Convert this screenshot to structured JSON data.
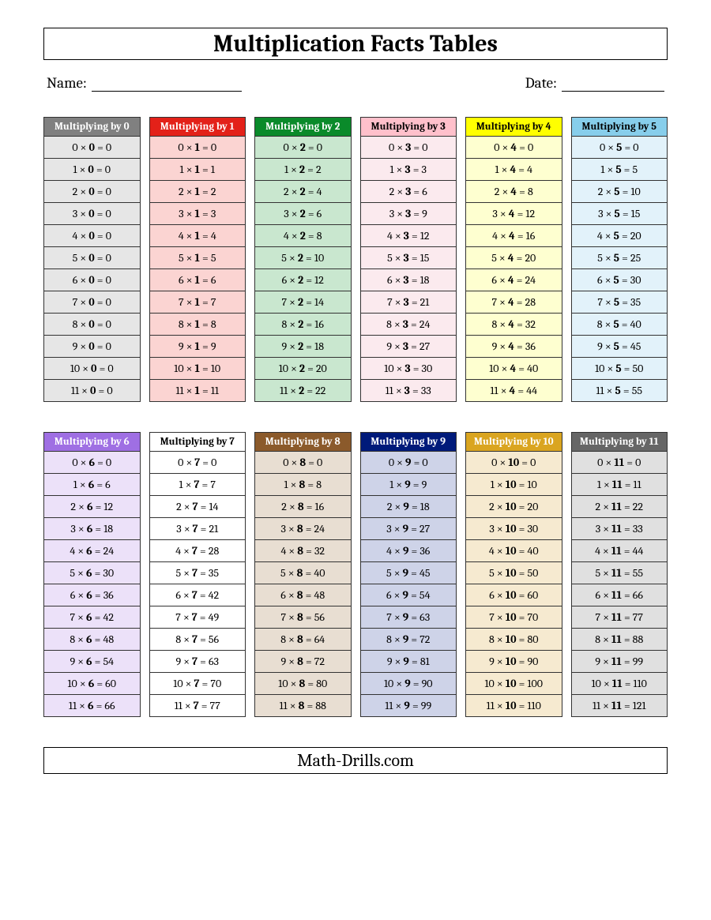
{
  "title": "Multiplication Facts Tables",
  "name_label": "Name:",
  "date_label": "Date:",
  "name_line_width": 190,
  "date_line_width": 130,
  "footer": "Math-Drills.com",
  "header_prefix": "Multiplying by",
  "multiply_sign": "×",
  "equals_sign": "=",
  "multiplicands": [
    0,
    1,
    2,
    3,
    4,
    5,
    6,
    7,
    8,
    9,
    10,
    11
  ],
  "tables": [
    {
      "n": 0,
      "header_bg": "#808080",
      "header_fg": "#ffffff",
      "cell_bg": "#e6e6e6"
    },
    {
      "n": 1,
      "header_bg": "#e32119",
      "header_fg": "#ffffff",
      "cell_bg": "#fbd4d2"
    },
    {
      "n": 2,
      "header_bg": "#0a8a2a",
      "header_fg": "#ffffff",
      "cell_bg": "#c9e7cf"
    },
    {
      "n": 3,
      "header_bg": "#ffc0cb",
      "header_fg": "#000000",
      "cell_bg": "#fbeaee"
    },
    {
      "n": 4,
      "header_bg": "#ffff00",
      "header_fg": "#000000",
      "cell_bg": "#feffd0"
    },
    {
      "n": 5,
      "header_bg": "#87ceeb",
      "header_fg": "#000000",
      "cell_bg": "#e2f2fa"
    },
    {
      "n": 6,
      "header_bg": "#9f6fe3",
      "header_fg": "#ffffff",
      "cell_bg": "#ece1f9"
    },
    {
      "n": 7,
      "header_bg": "#ffffff",
      "header_fg": "#000000",
      "cell_bg": "#ffffff"
    },
    {
      "n": 8,
      "header_bg": "#8b5a2b",
      "header_fg": "#ffffff",
      "cell_bg": "#e8ded2"
    },
    {
      "n": 9,
      "header_bg": "#001a7a",
      "header_fg": "#ffffff",
      "cell_bg": "#ced3e8"
    },
    {
      "n": 10,
      "header_bg": "#daa520",
      "header_fg": "#ffffff",
      "cell_bg": "#f6ead0"
    },
    {
      "n": 11,
      "header_bg": "#666666",
      "header_fg": "#ffffff",
      "cell_bg": "#e0e0e0"
    }
  ]
}
